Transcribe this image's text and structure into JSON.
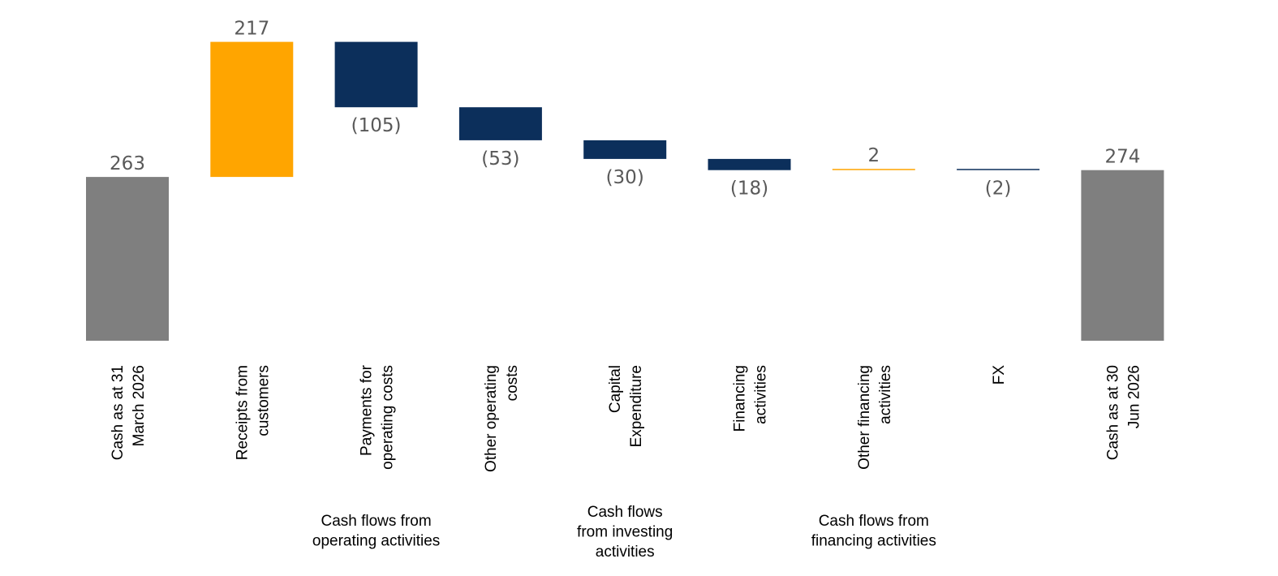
{
  "chart_data": {
    "type": "waterfall",
    "colors": {
      "total": "#7f7f7f",
      "increase": "#ffa500",
      "decrease": "#0c2f5b"
    },
    "steps": [
      {
        "category": [
          "Cash as at 31",
          "March 2026"
        ],
        "value": 263,
        "kind": "total",
        "label": "263"
      },
      {
        "category": [
          "Receipts from",
          "customers"
        ],
        "value": 217,
        "kind": "increase",
        "label": "217"
      },
      {
        "category": [
          "Payments for",
          "operating costs"
        ],
        "value": -105,
        "kind": "decrease",
        "label": "(105)"
      },
      {
        "category": [
          "Other operating",
          "costs"
        ],
        "value": -53,
        "kind": "decrease",
        "label": "(53)"
      },
      {
        "category": [
          "Capital",
          "Expenditure"
        ],
        "value": -30,
        "kind": "decrease",
        "label": "(30)"
      },
      {
        "category": [
          "Financing",
          "activities"
        ],
        "value": -18,
        "kind": "decrease",
        "label": "(18)"
      },
      {
        "category": [
          "Other financing",
          "activities"
        ],
        "value": 2,
        "kind": "increase",
        "label": "2"
      },
      {
        "category": [
          "FX"
        ],
        "value": -2,
        "kind": "decrease",
        "label": "(2)"
      },
      {
        "category": [
          "Cash as at 30",
          "Jun 2026"
        ],
        "value": 274,
        "kind": "total",
        "label": "274"
      }
    ],
    "groups": [
      {
        "lines": [
          "Cash flows from",
          "operating activities"
        ],
        "from": 1,
        "to": 3
      },
      {
        "lines": [
          "Cash flows",
          "from investing",
          "activities"
        ],
        "from": 4,
        "to": 4
      },
      {
        "lines": [
          "Cash flows from",
          "financing activities"
        ],
        "from": 5,
        "to": 7
      }
    ]
  }
}
